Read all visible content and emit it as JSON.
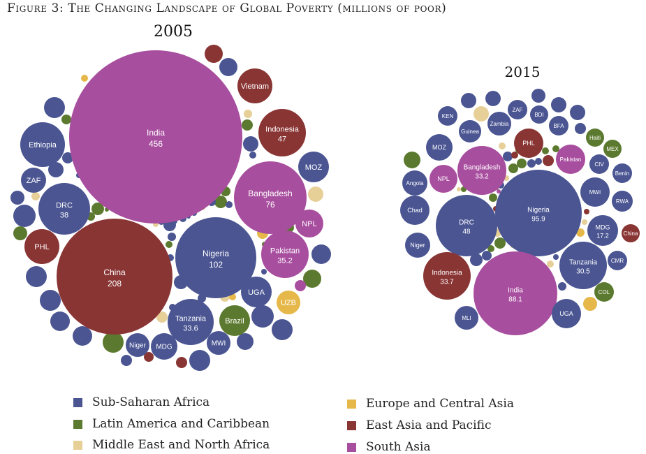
{
  "figure": {
    "title": "Figure 3: The Changing Landscape of Global Poverty (millions of poor)"
  },
  "colors": {
    "ssa": "#4a5592",
    "lac": "#5c7a2f",
    "mena": "#e7cf98",
    "eca": "#e6b84a",
    "eap": "#893534",
    "sa": "#a84e9f"
  },
  "legend": [
    {
      "key": "ssa",
      "label": "Sub-Saharan Africa"
    },
    {
      "key": "lac",
      "label": "Latin America and Caribbean"
    },
    {
      "key": "mena",
      "label": "Middle East and North Africa"
    },
    {
      "key": "eca",
      "label": "Europe and Central Asia"
    },
    {
      "key": "eap",
      "label": "East Asia and Pacific"
    },
    {
      "key": "sa",
      "label": "South Asia"
    }
  ],
  "chart_data": [
    {
      "type": "bubble",
      "title": "2005",
      "unit": "millions of poor",
      "bubbles": [
        {
          "label": "India",
          "value": "456",
          "region": "sa"
        },
        {
          "label": "China",
          "value": "208",
          "region": "eap"
        },
        {
          "label": "Nigeria",
          "value": "102",
          "region": "ssa"
        },
        {
          "label": "Bangladesh",
          "value": "76",
          "region": "sa"
        },
        {
          "label": "Indonesia",
          "value": "47",
          "region": "eap"
        },
        {
          "label": "DRC",
          "value": "38",
          "region": "ssa"
        },
        {
          "label": "Pakistan",
          "value": "35.2",
          "region": "sa"
        },
        {
          "label": "Tanzania",
          "value": "33.6",
          "region": "ssa"
        },
        {
          "label": "Ethiopia",
          "region": "ssa"
        },
        {
          "label": "Vietnam",
          "region": "eap"
        },
        {
          "label": "MOZ",
          "region": "ssa"
        },
        {
          "label": "NPL",
          "region": "sa"
        },
        {
          "label": "UGA",
          "region": "ssa"
        },
        {
          "label": "UZB",
          "region": "eca"
        },
        {
          "label": "Brazil",
          "region": "lac"
        },
        {
          "label": "MWI",
          "region": "ssa"
        },
        {
          "label": "MDG",
          "region": "ssa"
        },
        {
          "label": "Niger",
          "region": "ssa"
        },
        {
          "label": "PHL",
          "region": "eap"
        },
        {
          "label": "ZAF",
          "region": "ssa"
        }
      ]
    },
    {
      "type": "bubble",
      "title": "2015",
      "unit": "millions of poor",
      "bubbles": [
        {
          "label": "Nigeria",
          "value": "95.9",
          "region": "ssa"
        },
        {
          "label": "India",
          "value": "88.1",
          "region": "sa"
        },
        {
          "label": "DRC",
          "value": "48",
          "region": "ssa"
        },
        {
          "label": "Indonesia",
          "value": "33.7",
          "region": "eap"
        },
        {
          "label": "Bangladesh",
          "value": "33.2",
          "region": "sa"
        },
        {
          "label": "Tanzania",
          "value": "30.5",
          "region": "ssa"
        },
        {
          "label": "MDG",
          "value": "17.2",
          "region": "ssa"
        },
        {
          "label": "KEN",
          "region": "ssa"
        },
        {
          "label": "ZAF",
          "region": "ssa"
        },
        {
          "label": "BDI",
          "region": "ssa"
        },
        {
          "label": "Zambia",
          "region": "ssa"
        },
        {
          "label": "Guinea",
          "region": "ssa"
        },
        {
          "label": "BFA",
          "region": "ssa"
        },
        {
          "label": "Haiti",
          "region": "lac"
        },
        {
          "label": "MOZ",
          "region": "ssa"
        },
        {
          "label": "PHL",
          "region": "eap"
        },
        {
          "label": "MEX",
          "region": "lac"
        },
        {
          "label": "Pakistan",
          "region": "sa"
        },
        {
          "label": "CIV",
          "region": "ssa"
        },
        {
          "label": "Benin",
          "region": "ssa"
        },
        {
          "label": "Angola",
          "region": "ssa"
        },
        {
          "label": "NPL",
          "region": "sa"
        },
        {
          "label": "MWI",
          "region": "ssa"
        },
        {
          "label": "RWA",
          "region": "ssa"
        },
        {
          "label": "Chad",
          "region": "ssa"
        },
        {
          "label": "China",
          "region": "eap"
        },
        {
          "label": "Niger",
          "region": "ssa"
        },
        {
          "label": "CMR",
          "region": "ssa"
        },
        {
          "label": "COL",
          "region": "lac"
        },
        {
          "label": "UGA",
          "region": "ssa"
        },
        {
          "label": "MLI",
          "region": "ssa"
        }
      ]
    }
  ]
}
